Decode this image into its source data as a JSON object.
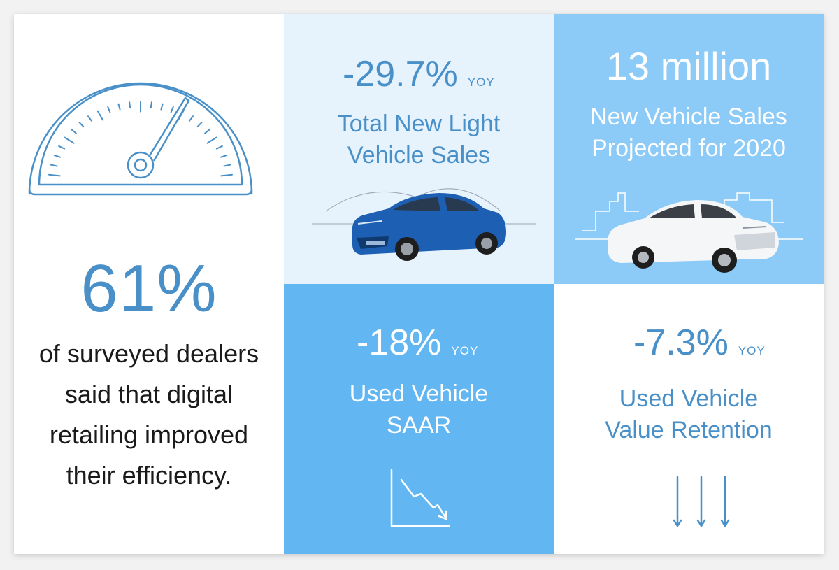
{
  "colors": {
    "accent_blue": "#4a90c8",
    "pale_blue_bg": "#e6f3fd",
    "mid_blue_bg": "#8ccaf7",
    "bright_blue_bg": "#62b6f2"
  },
  "left_panel": {
    "icon": "speedometer-icon",
    "percent": "61%",
    "description": "of surveyed dealers said that digital retailing improved their efficiency."
  },
  "top_middle": {
    "value": "-29.7%",
    "unit": "YOY",
    "label_line1": "Total New Light",
    "label_line2": "Vehicle Sales",
    "image": "blue-sedan-car"
  },
  "top_right": {
    "value": "13 million",
    "label_line1": "New Vehicle Sales",
    "label_line2": "Projected for 2020",
    "image": "white-coupe-car"
  },
  "bottom_middle": {
    "value": "-18%",
    "unit": "YOY",
    "label_line1": "Used Vehicle",
    "label_line2": "SAAR",
    "icon": "declining-chart-icon"
  },
  "bottom_right": {
    "value": "-7.3%",
    "unit": "YOY",
    "label_line1": "Used Vehicle",
    "label_line2": "Value Retention",
    "icon": "down-arrows-icon"
  }
}
